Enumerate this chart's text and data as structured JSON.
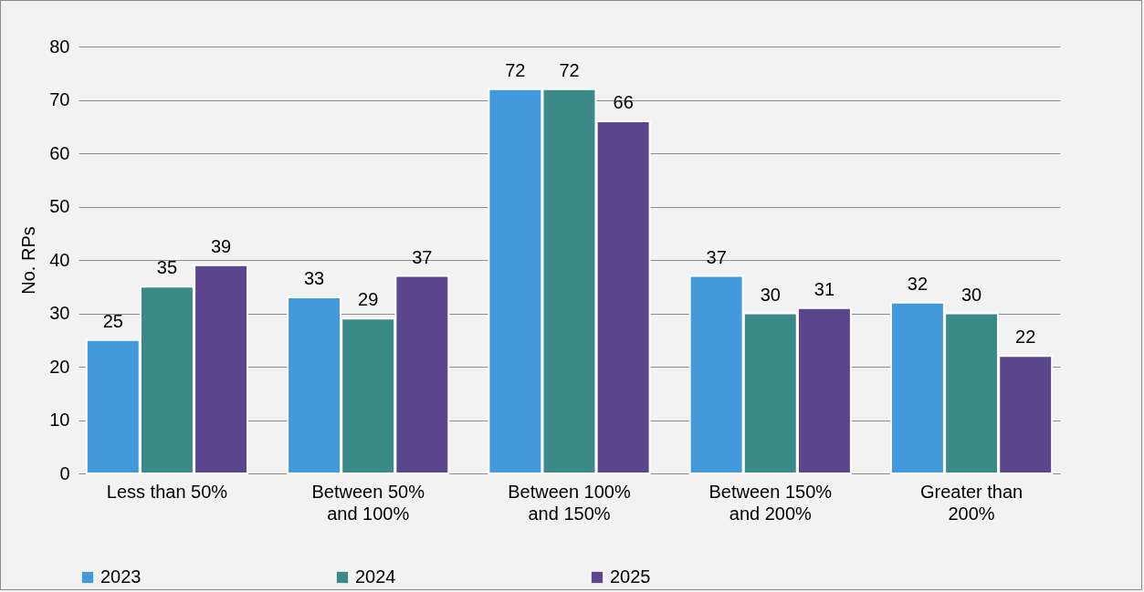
{
  "chart_data": {
    "type": "bar",
    "ylabel": "No. RPs",
    "categories": [
      "Less than 50%",
      "Between 50% and 100%",
      "Between 100% and 150%",
      "Between 150% and 200%",
      "Greater than 200%"
    ],
    "series": [
      {
        "name": "2023",
        "color": "#4299dc",
        "values": [
          25,
          33,
          72,
          37,
          32
        ]
      },
      {
        "name": "2024",
        "color": "#3a8a8a",
        "values": [
          35,
          29,
          72,
          30,
          30
        ]
      },
      {
        "name": "2025",
        "color": "#5b458c",
        "values": [
          39,
          37,
          66,
          31,
          22
        ]
      }
    ],
    "ylim": [
      0,
      80
    ],
    "yticks": [
      0,
      10,
      20,
      30,
      40,
      50,
      60,
      70,
      80
    ],
    "grid": "y",
    "legend": "bottom",
    "data_labels": true
  }
}
